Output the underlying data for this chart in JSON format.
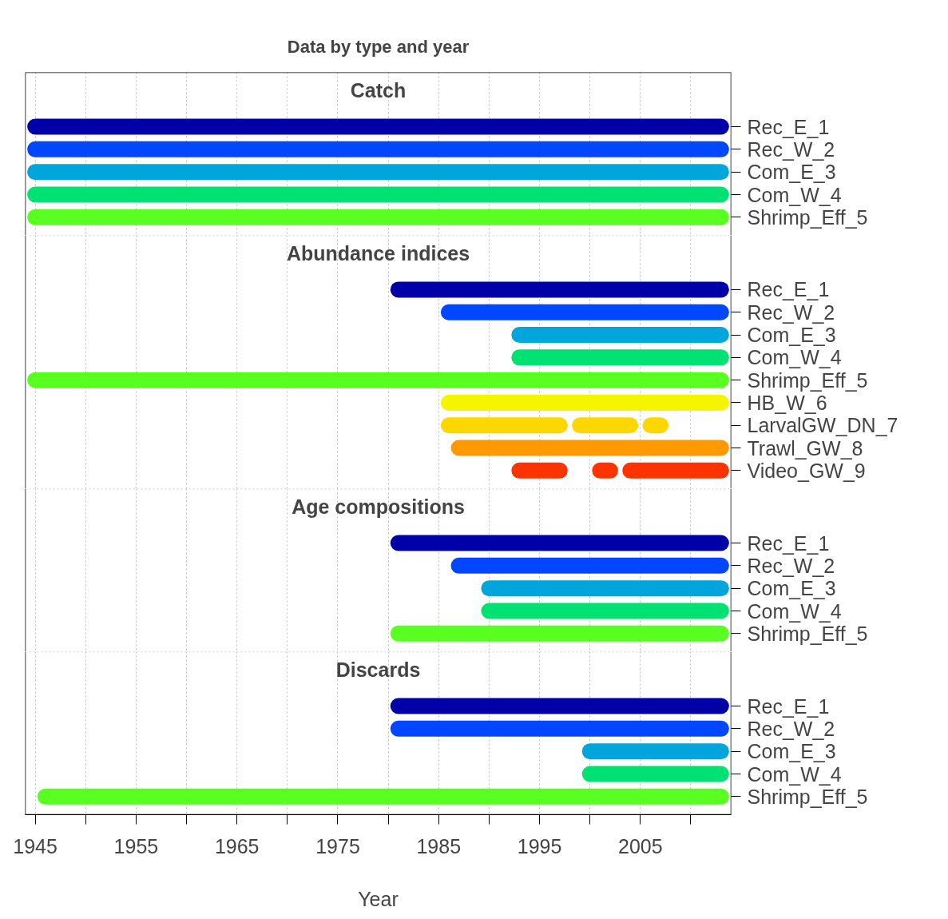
{
  "chart_data": [
    {
      "type": "bar",
      "orientation": "horizontal",
      "title": "Data by type and year",
      "subtitle": "Catch",
      "tick_labels": "y",
      "grid": "x",
      "xlim": [
        1944,
        2014
      ],
      "xticks": [
        1945,
        {
          "value": 1950,
          "label": null
        },
        1955,
        {
          "value": 1960,
          "label": null
        },
        1965,
        {
          "value": 1970,
          "label": null
        },
        1975,
        {
          "value": 1980,
          "label": null
        },
        1985,
        {
          "value": 1990,
          "label": null
        },
        1995,
        {
          "value": 2000,
          "label": null
        },
        2005,
        {
          "value": 2010,
          "label": null
        }
      ],
      "categories": [
        "Rec_E_1",
        "Rec_W_2",
        "Com_E_3",
        "Com_W_4",
        "Shrimp_Eff_5"
      ],
      "series": [
        {
          "base": [
            1945,
            1945,
            1945,
            1945,
            1945
          ],
          "values": [
            68,
            68,
            68,
            68,
            68
          ],
          "colors": [
            "#0000a8",
            "#0047ff",
            "#00a5dc",
            "#00e173",
            "#5aff22"
          ]
        }
      ]
    },
    {
      "type": "bar",
      "orientation": "horizontal",
      "subtitle": "Abundance indices",
      "tick_labels": "y",
      "grid": "x",
      "xlim": [
        1944,
        2014
      ],
      "xticks": [
        1945,
        {
          "value": 1950,
          "label": null
        },
        1955,
        {
          "value": 1960,
          "label": null
        },
        1965,
        {
          "value": 1970,
          "label": null
        },
        1975,
        {
          "value": 1980,
          "label": null
        },
        1985,
        {
          "value": 1990,
          "label": null
        },
        1995,
        {
          "value": 2000,
          "label": null
        },
        2005,
        {
          "value": 2010,
          "label": null
        }
      ],
      "categories": [
        "Rec_E_1",
        "Rec_W_2",
        "Com_E_3",
        "Com_W_4",
        "Shrimp_Eff_5",
        "HB_W_6",
        "LarvalGW_DN_7",
        "Trawl_GW_8",
        "Video_GW_9"
      ],
      "series": [
        {
          "base": [
            1981,
            1986,
            1993,
            1993,
            1945,
            1986,
            1986,
            1987,
            1993
          ],
          "values": [
            32,
            27,
            20,
            20,
            68,
            27,
            11,
            26,
            4
          ],
          "colors": [
            "#0000a8",
            "#0047ff",
            "#00a5dc",
            "#00e173",
            "#5aff22",
            "#f5f500",
            "#ffd700",
            "#ff9900",
            "#ff3300"
          ]
        },
        {
          "base": [
            null,
            null,
            null,
            null,
            null,
            null,
            1999,
            null,
            2001
          ],
          "values": [
            null,
            null,
            null,
            null,
            null,
            null,
            5,
            null,
            1
          ],
          "colors": [
            "#0000a8",
            "#0047ff",
            "#00a5dc",
            "#00e173",
            "#5aff22",
            "#f5f500",
            "#ffd700",
            "#ff9900",
            "#ff3300"
          ]
        },
        {
          "base": [
            null,
            null,
            null,
            null,
            null,
            null,
            2006,
            null,
            2004
          ],
          "values": [
            null,
            null,
            null,
            null,
            null,
            null,
            1,
            null,
            9
          ],
          "colors": [
            "#0000a8",
            "#0047ff",
            "#00a5dc",
            "#00e173",
            "#5aff22",
            "#f5f500",
            "#ffd700",
            "#ff9900",
            "#ff3300"
          ]
        }
      ]
    },
    {
      "type": "bar",
      "orientation": "horizontal",
      "subtitle": "Age compositions",
      "tick_labels": "y",
      "grid": "x",
      "xlim": [
        1944,
        2014
      ],
      "xticks": [
        1945,
        {
          "value": 1950,
          "label": null
        },
        1955,
        {
          "value": 1960,
          "label": null
        },
        1965,
        {
          "value": 1970,
          "label": null
        },
        1975,
        {
          "value": 1980,
          "label": null
        },
        1985,
        {
          "value": 1990,
          "label": null
        },
        1995,
        {
          "value": 2000,
          "label": null
        },
        2005,
        {
          "value": 2010,
          "label": null
        }
      ],
      "categories": [
        "Rec_E_1",
        "Rec_W_2",
        "Com_E_3",
        "Com_W_4",
        "Shrimp_Eff_5"
      ],
      "series": [
        {
          "base": [
            1981,
            1987,
            1990,
            1990,
            1981
          ],
          "values": [
            32,
            26,
            23,
            23,
            32
          ],
          "colors": [
            "#0000a8",
            "#0047ff",
            "#00a5dc",
            "#00e173",
            "#5aff22"
          ]
        }
      ]
    },
    {
      "type": "bar",
      "orientation": "horizontal",
      "subtitle": "Discards",
      "xlabel": "Year",
      "grid": "x",
      "xlim": [
        1944,
        2014
      ],
      "xticks": [
        1945,
        {
          "value": 1950,
          "label": null
        },
        1955,
        {
          "value": 1960,
          "label": null
        },
        1965,
        {
          "value": 1970,
          "label": null
        },
        1975,
        {
          "value": 1980,
          "label": null
        },
        1985,
        {
          "value": 1990,
          "label": null
        },
        1995,
        {
          "value": 2000,
          "label": null
        },
        2005,
        {
          "value": 2010,
          "label": null
        }
      ],
      "categories": [
        "Rec_E_1",
        "Rec_W_2",
        "Com_E_3",
        "Com_W_4",
        "Shrimp_Eff_5"
      ],
      "series": [
        {
          "base": [
            1981,
            1981,
            2000,
            2000,
            1946
          ],
          "values": [
            32,
            32,
            13,
            13,
            67
          ],
          "colors": [
            "#0000a8",
            "#0047ff",
            "#00a5dc",
            "#00e173",
            "#5aff22"
          ]
        }
      ]
    }
  ]
}
